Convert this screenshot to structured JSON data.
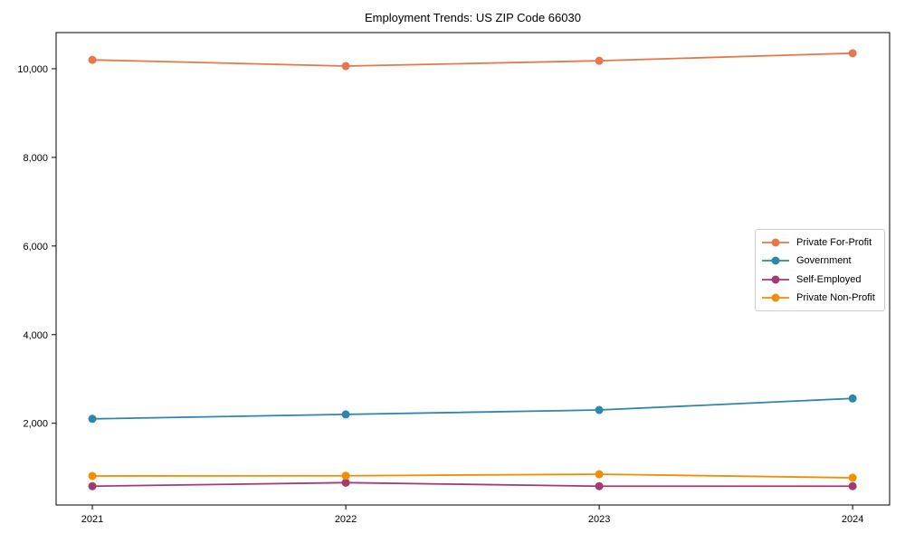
{
  "chart_data": {
    "type": "line",
    "title": "Employment Trends: US ZIP Code 66030",
    "xlabel": "",
    "ylabel": "",
    "x": [
      2021,
      2022,
      2023,
      2024
    ],
    "x_tick_labels": [
      "2021",
      "2022",
      "2023",
      "2024"
    ],
    "y_ticks": [
      2000,
      4000,
      6000,
      8000,
      10000
    ],
    "y_tick_labels": [
      "2,000",
      "4,000",
      "6,000",
      "8,000",
      "10,000"
    ],
    "xlim": [
      2020.857,
      2024.146
    ],
    "ylim": [
      156,
      10816
    ],
    "grid": false,
    "legend_position": "center-right",
    "series": [
      {
        "name": "Private For-Profit",
        "color": "#E8764A",
        "values": [
          10200,
          10060,
          10180,
          10350
        ]
      },
      {
        "name": "Government",
        "color": "#2E86AB",
        "values": [
          2100,
          2200,
          2300,
          2560
        ]
      },
      {
        "name": "Self-Employed",
        "color": "#A23B72",
        "values": [
          580,
          660,
          580,
          580
        ]
      },
      {
        "name": "Private Non-Profit",
        "color": "#F18F01",
        "values": [
          810,
          815,
          850,
          770
        ]
      }
    ]
  }
}
